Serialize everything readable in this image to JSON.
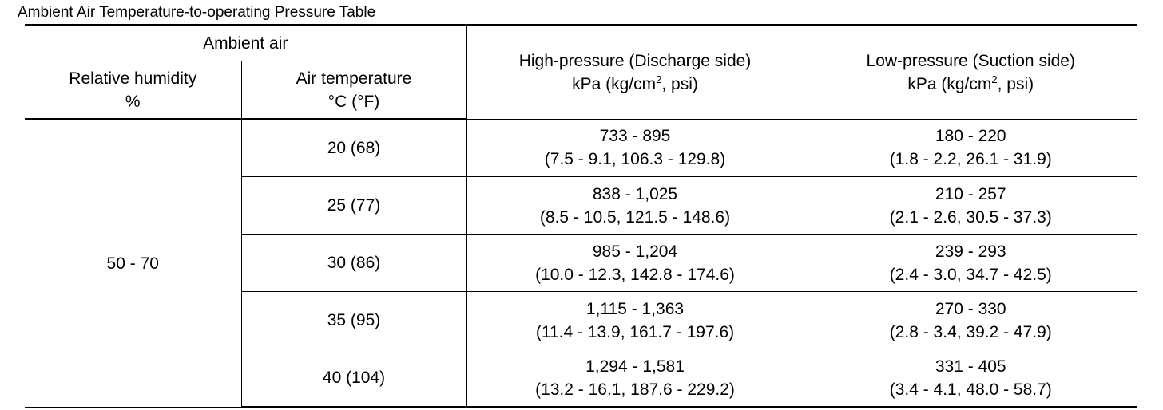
{
  "title": "Ambient Air Temperature-to-operating Pressure Table",
  "header": {
    "ambient_air": "Ambient air",
    "relative_humidity": "Relative humidity",
    "relative_humidity_unit": "%",
    "air_temperature": "Air temperature",
    "air_temperature_unit_c": "C (",
    "air_temperature_unit_f": "F)",
    "high_pressure": "High-pressure (Discharge side)",
    "low_pressure": "Low-pressure (Suction side)",
    "pressure_unit_a": "kPa (kg/cm",
    "pressure_unit_sup": "2",
    "pressure_unit_b": ", psi)"
  },
  "humidity": "50 - 70",
  "rows": [
    {
      "temp": "20 (68)",
      "high_kpa": "733 - 895",
      "high_other": "(7.5 - 9.1, 106.3 - 129.8)",
      "low_kpa": "180 - 220",
      "low_other": "(1.8 - 2.2, 26.1 - 31.9)"
    },
    {
      "temp": "25 (77)",
      "high_kpa": "838 - 1,025",
      "high_other": "(8.5 - 10.5, 121.5 - 148.6)",
      "low_kpa": "210 - 257",
      "low_other": "(2.1 - 2.6, 30.5 - 37.3)"
    },
    {
      "temp": "30 (86)",
      "high_kpa": "985 - 1,204",
      "high_other": "(10.0 - 12.3, 142.8 - 174.6)",
      "low_kpa": "239 - 293",
      "low_other": "(2.4 - 3.0, 34.7 - 42.5)"
    },
    {
      "temp": "35 (95)",
      "high_kpa": "1,115 - 1,363",
      "high_other": "(11.4 - 13.9, 161.7 - 197.6)",
      "low_kpa": "270 - 330",
      "low_other": "(2.8 - 3.4, 39.2 - 47.9)"
    },
    {
      "temp": "40 (104)",
      "high_kpa": "1,294 - 1,581",
      "high_other": "(13.2 - 16.1, 187.6 - 229.2)",
      "low_kpa": "331 - 405",
      "low_other": "(3.4 - 4.1, 48.0 - 58.7)"
    }
  ]
}
